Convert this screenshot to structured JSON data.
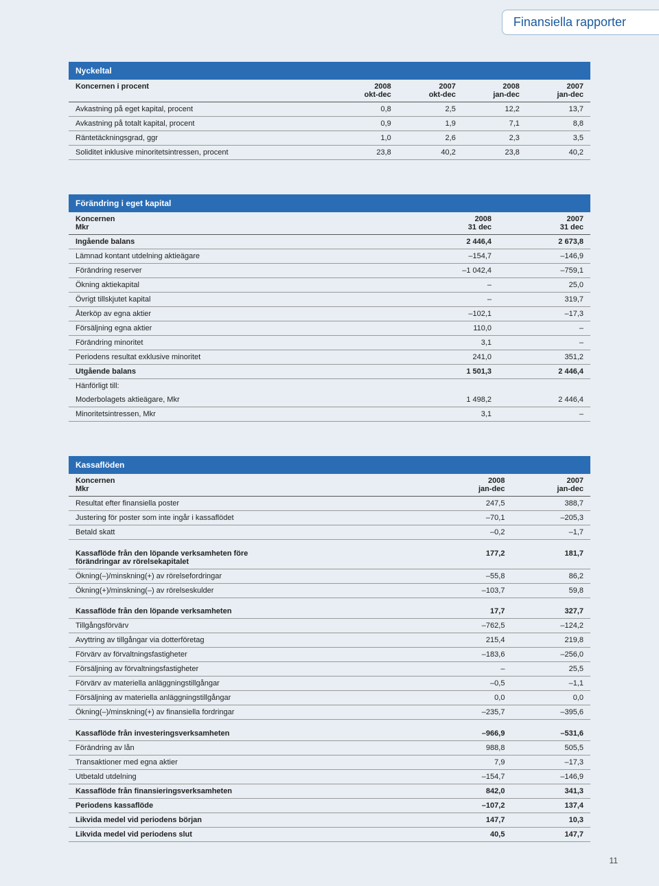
{
  "header": {
    "tab_label": "Finansiella rapporter"
  },
  "colors": {
    "page_bg": "#e8eef3",
    "table_header_bg": "#2a6db5",
    "table_header_text": "#ffffff",
    "border_row": "#999999",
    "border_strong": "#555555",
    "tab_bg": "#ffffff",
    "tab_border": "#9bb8d3",
    "tab_text": "#1a5a9e"
  },
  "page_number": "11",
  "nyckeltal": {
    "title": "Nyckeltal",
    "header_label": "Koncernen i procent",
    "cols": [
      {
        "y": "2008",
        "p": "okt-dec"
      },
      {
        "y": "2007",
        "p": "okt-dec"
      },
      {
        "y": "2008",
        "p": "jan-dec"
      },
      {
        "y": "2007",
        "p": "jan-dec"
      }
    ],
    "rows": [
      {
        "label": "Avkastning på eget kapital, procent",
        "v": [
          "0,8",
          "2,5",
          "12,2",
          "13,7"
        ]
      },
      {
        "label": "Avkastning på totalt kapital, procent",
        "v": [
          "0,9",
          "1,9",
          "7,1",
          "8,8"
        ]
      },
      {
        "label": "Räntetäckningsgrad, ggr",
        "v": [
          "1,0",
          "2,6",
          "2,3",
          "3,5"
        ]
      },
      {
        "label": "Soliditet inklusive minoritetsintressen, procent",
        "v": [
          "23,8",
          "40,2",
          "23,8",
          "40,2"
        ]
      }
    ]
  },
  "eget_kapital": {
    "title": "Förändring i eget kapital",
    "header_label1": "Koncernen",
    "header_label2": "Mkr",
    "cols": [
      {
        "y": "2008",
        "p": "31 dec"
      },
      {
        "y": "2007",
        "p": "31 dec"
      }
    ],
    "rows": [
      {
        "label": "Ingående balans",
        "v": [
          "2 446,4",
          "2 673,8"
        ],
        "bold": true
      },
      {
        "label": "Lämnad kontant utdelning aktieägare",
        "v": [
          "–154,7",
          "–146,9"
        ]
      },
      {
        "label": "Förändring reserver",
        "v": [
          "–1 042,4",
          "–759,1"
        ]
      },
      {
        "label": "Ökning aktiekapital",
        "v": [
          "–",
          "25,0"
        ]
      },
      {
        "label": "Övrigt tillskjutet kapital",
        "v": [
          "–",
          "319,7"
        ]
      },
      {
        "label": "Återköp av egna aktier",
        "v": [
          "–102,1",
          "–17,3"
        ]
      },
      {
        "label": "Försäljning egna aktier",
        "v": [
          "110,0",
          "–"
        ]
      },
      {
        "label": "Förändring minoritet",
        "v": [
          "3,1",
          "–"
        ]
      },
      {
        "label": "Periodens resultat exklusive minoritet",
        "v": [
          "241,0",
          "351,2"
        ]
      },
      {
        "label": "Utgående balans",
        "v": [
          "1 501,3",
          "2 446,4"
        ],
        "bold": true
      },
      {
        "label": "Hänförligt till:",
        "v": [
          "",
          ""
        ],
        "noborder": true
      },
      {
        "label": "Moderbolagets aktieägare, Mkr",
        "v": [
          "1 498,2",
          "2 446,4"
        ]
      },
      {
        "label": "Minoritetsintressen, Mkr",
        "v": [
          "3,1",
          "–"
        ]
      }
    ]
  },
  "kassafloden": {
    "title": "Kassaflöden",
    "header_label1": "Koncernen",
    "header_label2": "Mkr",
    "cols": [
      {
        "y": "2008",
        "p": "jan-dec"
      },
      {
        "y": "2007",
        "p": "jan-dec"
      }
    ],
    "rows": [
      {
        "label": "Resultat efter finansiella poster",
        "v": [
          "247,5",
          "388,7"
        ]
      },
      {
        "label": "Justering för poster som inte ingår i kassaflödet",
        "v": [
          "–70,1",
          "–205,3"
        ]
      },
      {
        "label": "Betald skatt",
        "v": [
          "–0,2",
          "–1,7"
        ]
      },
      {
        "label": "Kassaflöde från den löpande verksamheten före\nförändringar av rörelsekapitalet",
        "v": [
          "177,2",
          "181,7"
        ],
        "bold": true,
        "gap": true
      },
      {
        "label": "Ökning(–)/minskning(+) av rörelsefordringar",
        "v": [
          "–55,8",
          "86,2"
        ]
      },
      {
        "label": "Ökning(+)/minskning(–) av rörelseskulder",
        "v": [
          "–103,7",
          "59,8"
        ]
      },
      {
        "label": "Kassaflöde från den löpande verksamheten",
        "v": [
          "17,7",
          "327,7"
        ],
        "bold": true,
        "gap": true
      },
      {
        "label": "Tillgångsförvärv",
        "v": [
          "–762,5",
          "–124,2"
        ]
      },
      {
        "label": "Avyttring av tillgångar via dotterföretag",
        "v": [
          "215,4",
          "219,8"
        ]
      },
      {
        "label": "Förvärv av förvaltningsfastigheter",
        "v": [
          "–183,6",
          "–256,0"
        ]
      },
      {
        "label": "Försäljning av förvaltningsfastigheter",
        "v": [
          "–",
          "25,5"
        ]
      },
      {
        "label": "Förvärv av materiella anläggningstillgångar",
        "v": [
          "–0,5",
          "–1,1"
        ]
      },
      {
        "label": "Försäljning av materiella anläggningstillgångar",
        "v": [
          "0,0",
          "0,0"
        ]
      },
      {
        "label": "Ökning(–)/minskning(+) av finansiella fordringar",
        "v": [
          "–235,7",
          "–395,6"
        ]
      },
      {
        "label": "Kassaflöde från investeringsverksamheten",
        "v": [
          "–966,9",
          "–531,6"
        ],
        "bold": true,
        "gap": true
      },
      {
        "label": "Förändring av lån",
        "v": [
          "988,8",
          "505,5"
        ]
      },
      {
        "label": "Transaktioner med egna aktier",
        "v": [
          "7,9",
          "–17,3"
        ]
      },
      {
        "label": "Utbetald utdelning",
        "v": [
          "–154,7",
          "–146,9"
        ]
      },
      {
        "label": "Kassaflöde från finansieringsverksamheten",
        "v": [
          "842,0",
          "341,3"
        ],
        "bold": true
      },
      {
        "label": "Periodens kassaflöde",
        "v": [
          "–107,2",
          "137,4"
        ],
        "bold": true
      },
      {
        "label": "Likvida medel vid periodens början",
        "v": [
          "147,7",
          "10,3"
        ],
        "bold": true
      },
      {
        "label": "Likvida medel vid periodens slut",
        "v": [
          "40,5",
          "147,7"
        ],
        "bold": true
      }
    ]
  }
}
